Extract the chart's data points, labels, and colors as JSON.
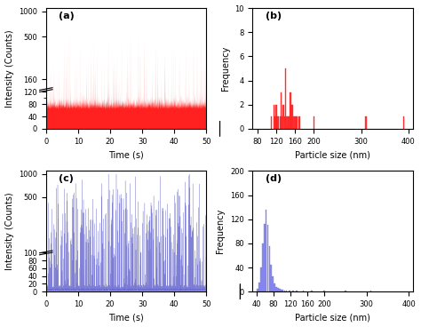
{
  "fig_width": 4.74,
  "fig_height": 3.68,
  "dpi": 100,
  "background_color": "#ffffff",
  "panel_a": {
    "label": "(a)",
    "xlabel": "Time (s)",
    "ylabel": "Intensity (Counts)",
    "xlim": [
      0,
      50
    ],
    "ylim": [
      0,
      1000
    ],
    "xticks": [
      0,
      10,
      20,
      30,
      40,
      50
    ],
    "color": "#ff2020",
    "baseline": 65,
    "noise_std": 18,
    "spike_prob": 0.025,
    "spike_max": 600,
    "n_points": 5000,
    "seed": 42
  },
  "panel_b": {
    "label": "(b)",
    "xlabel": "Particle size (nm)",
    "ylabel": "Frequency",
    "xlim": [
      70,
      410
    ],
    "ylim": [
      0,
      10
    ],
    "xticks": [
      80,
      120,
      160,
      200,
      300,
      400
    ],
    "yticks": [
      0,
      2,
      4,
      6,
      8,
      10
    ],
    "color": "#ff2020",
    "bar_centers": [
      110,
      115,
      118,
      120,
      122,
      125,
      128,
      130,
      132,
      135,
      138,
      140,
      143,
      145,
      148,
      150,
      152,
      155,
      158,
      160,
      163,
      165,
      168,
      170,
      200,
      310,
      390
    ],
    "bar_heights": [
      1,
      2,
      1,
      2,
      1,
      1,
      1,
      3,
      1,
      2,
      1,
      5,
      1,
      1,
      1,
      3,
      2,
      2,
      1,
      1,
      1,
      1,
      1,
      1,
      1,
      1,
      1
    ],
    "bar_width": 2.5
  },
  "panel_c": {
    "label": "(c)",
    "xlabel": "Time (s)",
    "ylabel": "Intensity (Counts)",
    "xlim": [
      0,
      50
    ],
    "ylim": [
      0,
      1000
    ],
    "xticks": [
      0,
      10,
      20,
      30,
      40,
      50
    ],
    "color": "#7777ee",
    "color_dark": "#3333bb",
    "baseline": 3,
    "noise_std": 5,
    "spike_prob": 0.08,
    "spike_max": 800,
    "n_points": 5000,
    "seed": 99
  },
  "panel_d": {
    "label": "(d)",
    "xlabel": "Particle size (nm)",
    "ylabel": "Frequency",
    "xlim": [
      30,
      410
    ],
    "ylim": [
      0,
      200
    ],
    "xticks": [
      40,
      80,
      120,
      160,
      200,
      300,
      400
    ],
    "yticks": [
      0,
      40,
      80,
      120,
      160,
      200
    ],
    "color": "#7777ee",
    "bar_centers": [
      42,
      46,
      50,
      54,
      58,
      62,
      66,
      70,
      74,
      78,
      82,
      86,
      90,
      94,
      98,
      102,
      106,
      110,
      118,
      126,
      134,
      150,
      170,
      200,
      250,
      310
    ],
    "bar_heights": [
      5,
      15,
      40,
      80,
      112,
      135,
      110,
      75,
      45,
      25,
      14,
      8,
      6,
      4,
      3,
      3,
      2,
      2,
      2,
      1,
      1,
      1,
      1,
      1,
      1,
      1
    ],
    "bar_width": 3.5
  }
}
